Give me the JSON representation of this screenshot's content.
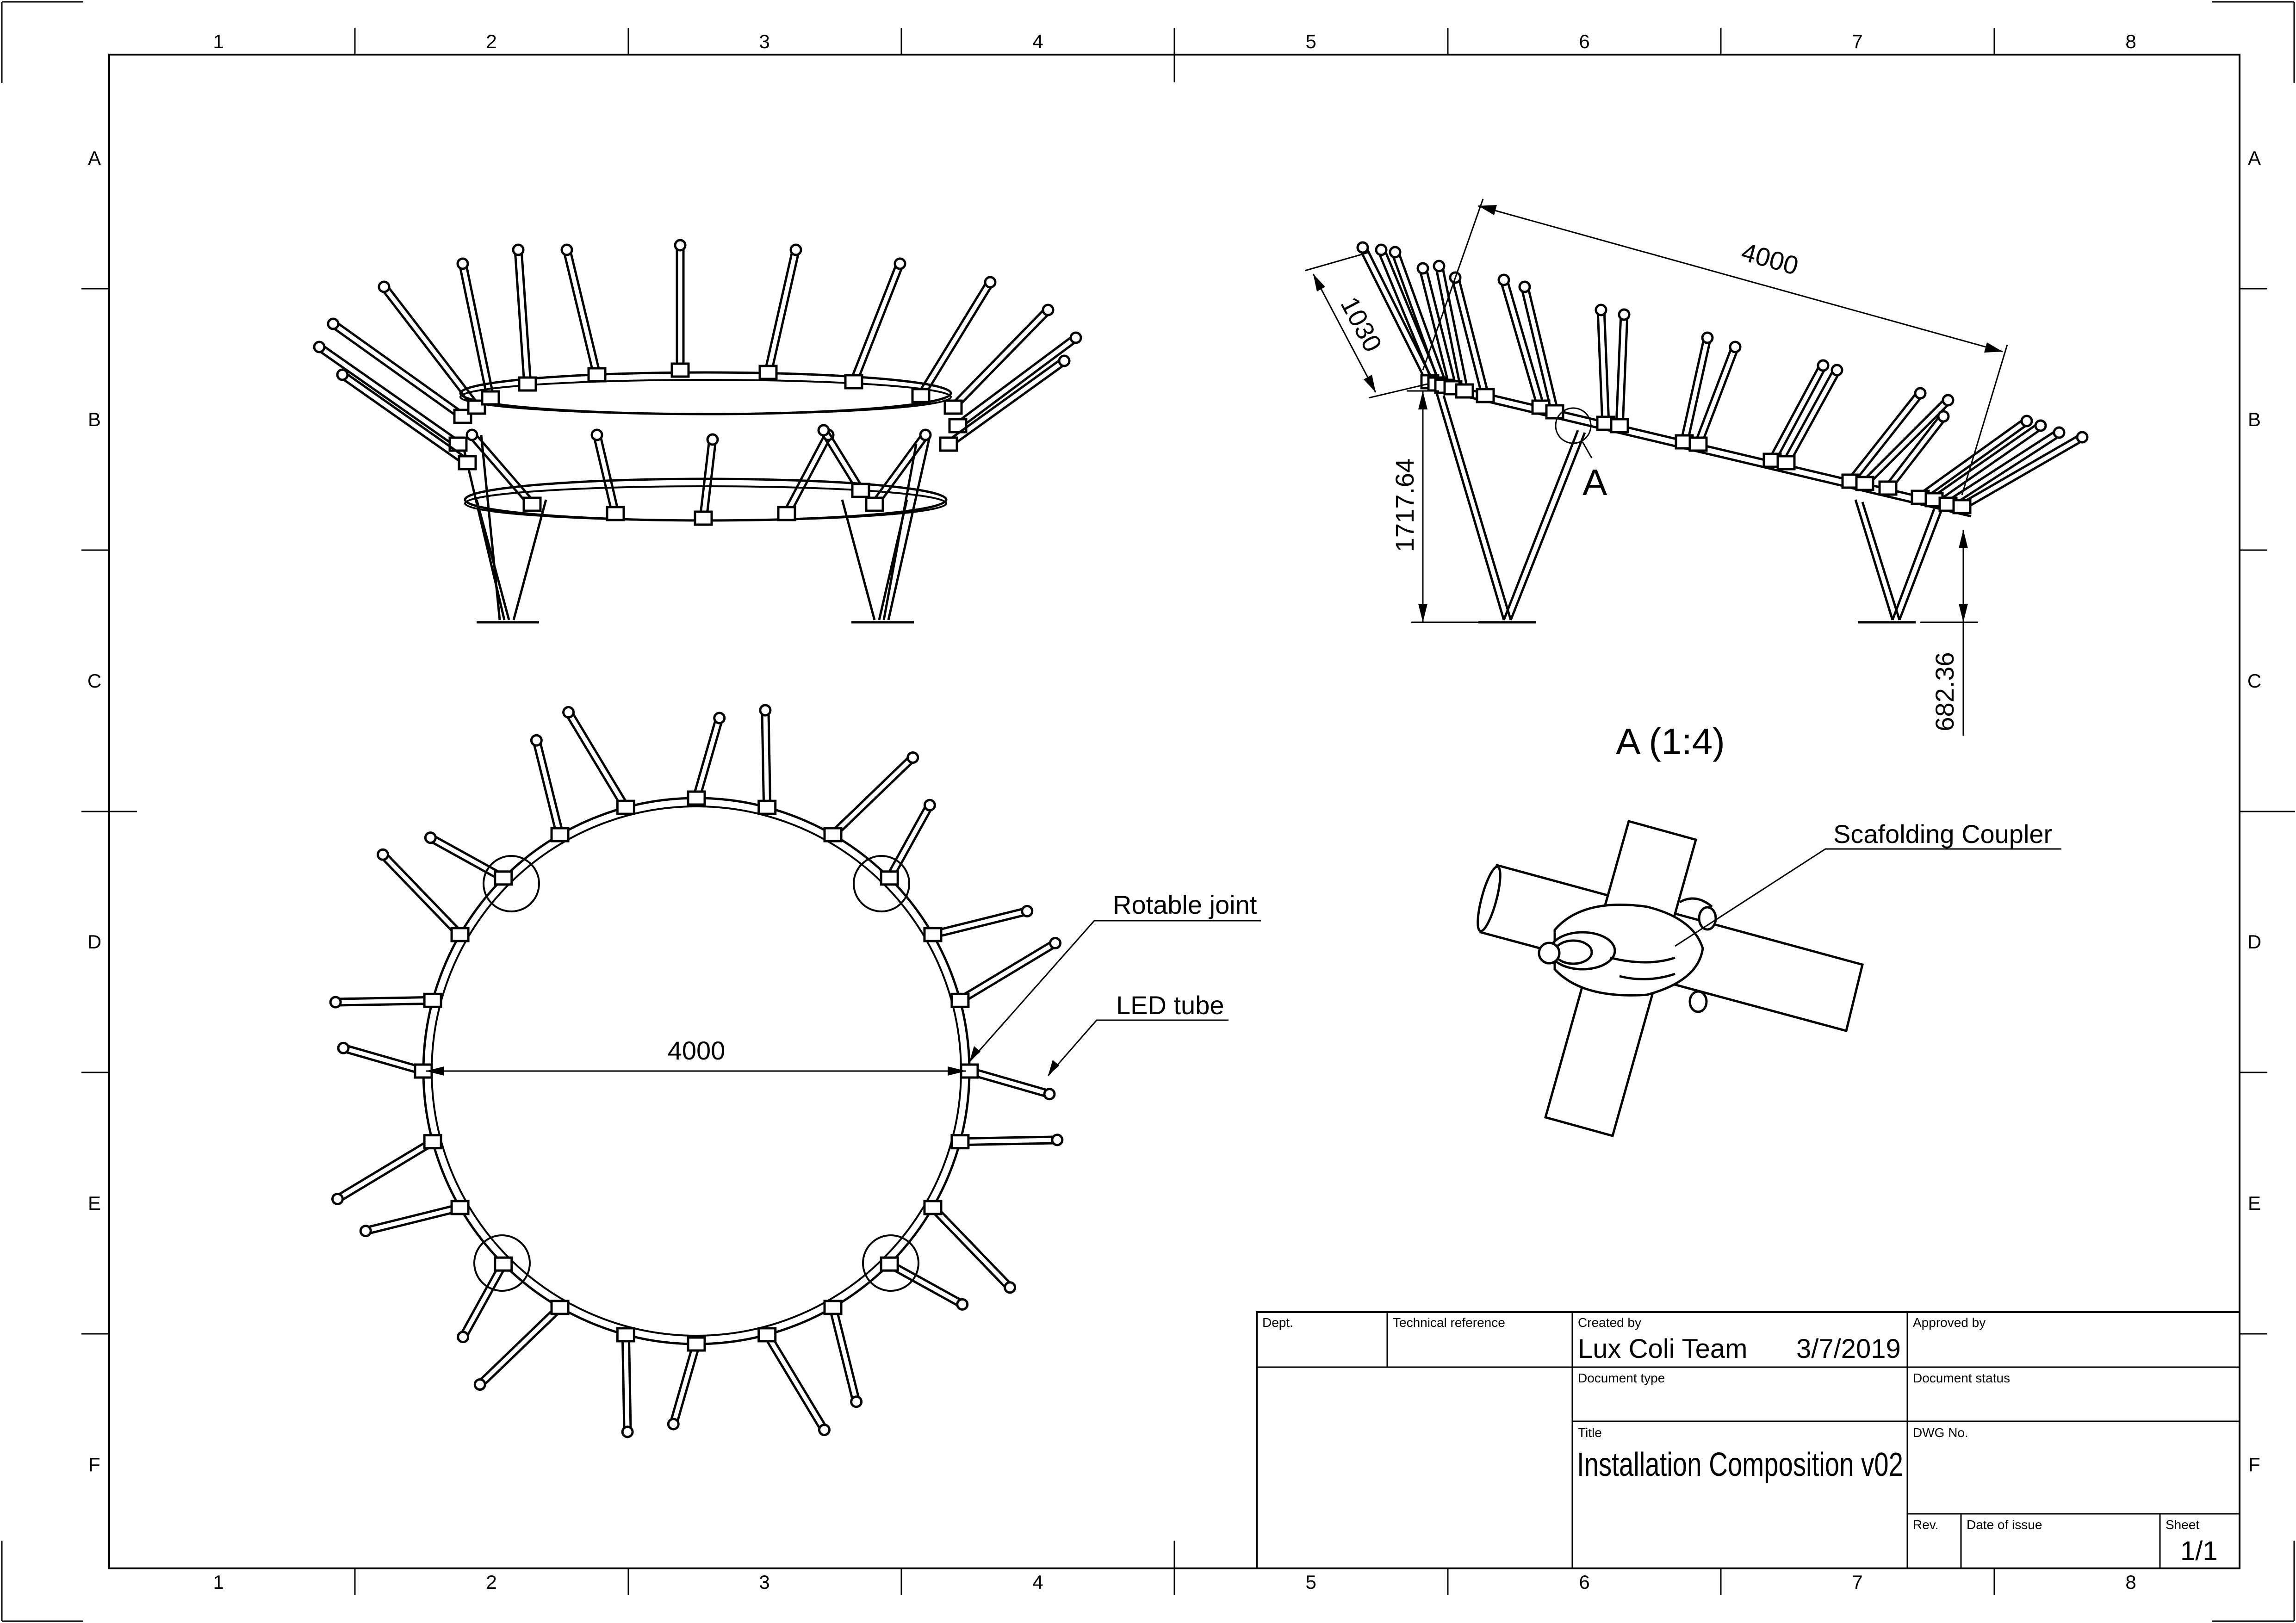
{
  "sheet": {
    "column_labels": [
      "1",
      "2",
      "3",
      "4",
      "5",
      "6",
      "7",
      "8"
    ],
    "row_labels": [
      "A",
      "B",
      "C",
      "D",
      "E",
      "F"
    ]
  },
  "views": {
    "side_view": {},
    "front_view": {
      "dim_length": "4000",
      "dim_height_left": "1717.64",
      "dim_height_right": "682.36",
      "dim_tube": "1030",
      "detail_marker": "A"
    },
    "top_view": {
      "dim_diameter": "4000",
      "callout_joint": "Rotable joint",
      "callout_tube": "LED tube"
    },
    "detail_view": {
      "title": "A (1:4)",
      "callout": "Scafolding Coupler"
    }
  },
  "title_block": {
    "dept_label": "Dept.",
    "tech_ref_label": "Technical reference",
    "created_by_label": "Created by",
    "created_by": "Lux Coli Team",
    "date": "3/7/2019",
    "approved_by_label": "Approved by",
    "doc_type_label": "Document type",
    "doc_status_label": "Document status",
    "title_label": "Title",
    "title": "Installation Composition v02",
    "dwg_label": "DWG No.",
    "rev_label": "Rev.",
    "date_issue_label": "Date of issue",
    "sheet_label": "Sheet",
    "sheet": "1/1"
  }
}
